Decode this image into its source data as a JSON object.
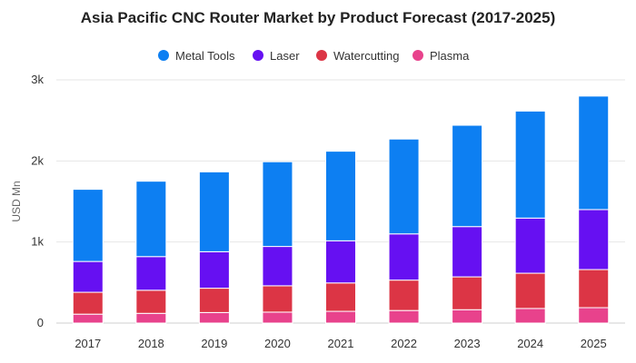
{
  "chart_data": {
    "type": "bar",
    "stacked": true,
    "title": "Asia Pacific CNC Router Market by Product Forecast (2017-2025)",
    "xlabel": "",
    "ylabel": "USD Mn",
    "ylim": [
      0,
      3000
    ],
    "yticks": [
      0,
      1000,
      2000,
      3000
    ],
    "ytick_labels": [
      "0",
      "1k",
      "2k",
      "3k"
    ],
    "grid": true,
    "legend_position": "top-center",
    "categories": [
      "2017",
      "2018",
      "2019",
      "2020",
      "2021",
      "2022",
      "2023",
      "2024",
      "2025"
    ],
    "series": [
      {
        "name": "Plasma",
        "color": "#e8428c",
        "values": [
          110,
          120,
          130,
          135,
          145,
          155,
          165,
          180,
          190
        ]
      },
      {
        "name": "Watercutting",
        "color": "#dc3545",
        "values": [
          270,
          285,
          300,
          325,
          350,
          375,
          405,
          435,
          470
        ]
      },
      {
        "name": "Laser",
        "color": "#6610f2",
        "values": [
          380,
          415,
          450,
          485,
          520,
          570,
          620,
          680,
          740
        ]
      },
      {
        "name": "Metal Tools",
        "color": "#0d7ff2",
        "values": [
          890,
          930,
          985,
          1045,
          1105,
          1170,
          1250,
          1320,
          1400
        ]
      }
    ],
    "legend_order": [
      "Metal Tools",
      "Laser",
      "Watercutting",
      "Plasma"
    ]
  }
}
